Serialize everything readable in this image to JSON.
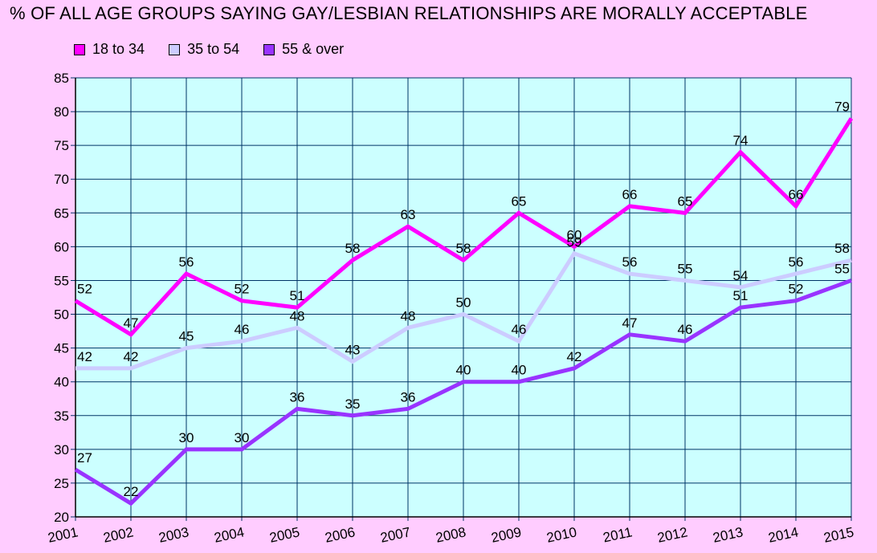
{
  "chart_data": {
    "type": "line",
    "title": "% OF ALL AGE GROUPS SAYING GAY/LESBIAN RELATIONSHIPS ARE MORALLY ACCEPTABLE",
    "xlabel": "",
    "ylabel": "",
    "categories": [
      "2001",
      "2002",
      "2003",
      "2004",
      "2005",
      "2006",
      "2007",
      "2008",
      "2009",
      "2010",
      "2011",
      "2012",
      "2013",
      "2014",
      "2015"
    ],
    "ylim": [
      20,
      85
    ],
    "yticks": [
      20,
      25,
      30,
      35,
      40,
      45,
      50,
      55,
      60,
      65,
      70,
      75,
      80,
      85
    ],
    "grid": true,
    "legend_position": "top-left",
    "plot_background": "#ccffff",
    "gridline_color": "#003366",
    "series": [
      {
        "name": "18 to 34",
        "color": "#ff00ff",
        "values": [
          52,
          47,
          56,
          52,
          51,
          58,
          63,
          58,
          65,
          60,
          66,
          65,
          74,
          66,
          79
        ]
      },
      {
        "name": "35 to 54",
        "color": "#ccccff",
        "values": [
          42,
          42,
          45,
          46,
          48,
          43,
          48,
          50,
          46,
          59,
          56,
          55,
          54,
          56,
          58
        ]
      },
      {
        "name": "55 & over",
        "color": "#9933ff",
        "values": [
          27,
          22,
          30,
          30,
          36,
          35,
          36,
          40,
          40,
          42,
          47,
          46,
          51,
          52,
          55
        ]
      }
    ],
    "data_labels": [
      [
        "52",
        "47",
        "56",
        "52",
        "51",
        "58",
        "63",
        "58",
        "65",
        "60",
        "66",
        "65",
        "74",
        "66",
        "79"
      ],
      [
        "42",
        "42",
        "45",
        "46",
        "48",
        "43",
        "48",
        "50",
        "46",
        "59",
        "56",
        "55",
        "54",
        "56",
        "58"
      ],
      [
        "27",
        "22",
        "30",
        "30",
        "36",
        "35",
        "36",
        "40",
        "40",
        "42",
        "47",
        "46",
        "51",
        "52",
        "55"
      ]
    ]
  }
}
